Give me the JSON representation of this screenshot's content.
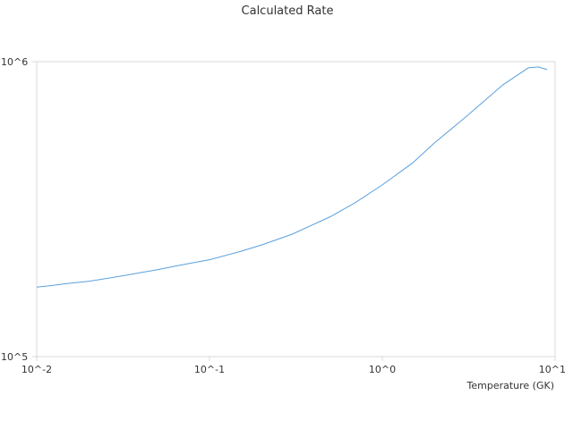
{
  "chart_data": {
    "type": "line",
    "title": "Calculated Rate",
    "xlabel": "Temperature (GK)",
    "ylabel": "",
    "xscale": "log",
    "yscale": "log",
    "xlim": [
      0.01,
      10
    ],
    "ylim": [
      100000,
      1000000
    ],
    "x_ticks": [
      {
        "value": 0.01,
        "label": "10^-2"
      },
      {
        "value": 0.1,
        "label": "10^-1"
      },
      {
        "value": 1,
        "label": "10^0"
      },
      {
        "value": 10,
        "label": "10^1"
      }
    ],
    "y_ticks": [
      {
        "value": 100000,
        "label": "10^5"
      },
      {
        "value": 1000000,
        "label": "10^6"
      }
    ],
    "grid": false,
    "legend": "none",
    "series": [
      {
        "color": "#5aa0dd",
        "x": [
          0.01,
          0.012,
          0.015,
          0.02,
          0.03,
          0.05,
          0.07,
          0.1,
          0.15,
          0.2,
          0.3,
          0.5,
          0.7,
          1.0,
          1.5,
          2.0,
          3.0,
          5.0,
          7.0,
          8.0,
          9.0
        ],
        "y": [
          172000,
          174000,
          177000,
          180000,
          187000,
          197000,
          205000,
          213000,
          227000,
          239000,
          260000,
          298000,
          333000,
          382000,
          454000,
          530000,
          645000,
          835000,
          953000,
          960000,
          940000
        ]
      }
    ]
  }
}
